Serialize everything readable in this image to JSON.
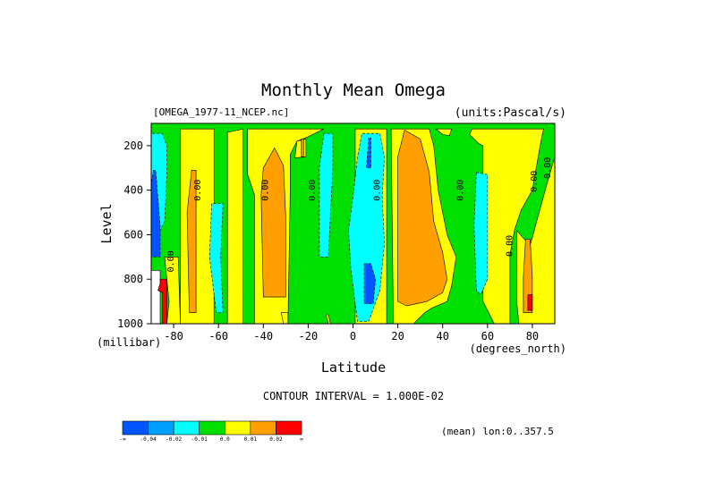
{
  "chart_data": {
    "type": "heatmap",
    "title": "Monthly Mean Omega",
    "dataset_label": "[OMEGA_1977-11_NCEP.nc]",
    "units_label": "(units:Pascal/s)",
    "xlabel": "Latitude",
    "x_units": "(degrees_north)",
    "ylabel": "Level",
    "y_units": "(millibar)",
    "xlim": [
      -90,
      90
    ],
    "ylim": [
      1000,
      100
    ],
    "x_ticks": [
      -80,
      -60,
      -40,
      -20,
      0,
      20,
      40,
      60,
      80
    ],
    "y_ticks": [
      200,
      400,
      600,
      800,
      1000
    ],
    "contour_interval_text": "CONTOUR INTERVAL = 1.000E-02",
    "subset_text": "(mean) lon:0..357.5",
    "contour_labels": [
      {
        "text": "0.00",
        "lat": -80,
        "level": 720
      },
      {
        "text": "0.00",
        "lat": -68,
        "level": 400
      },
      {
        "text": "0.00",
        "lat": -38,
        "level": 400
      },
      {
        "text": "0.00",
        "lat": -17,
        "level": 400
      },
      {
        "text": "0.00",
        "lat": 12,
        "level": 400
      },
      {
        "text": "0.00",
        "lat": 49,
        "level": 400
      },
      {
        "text": "0.00",
        "lat": 71,
        "level": 650
      },
      {
        "text": "0.00",
        "lat": 82,
        "level": 360
      },
      {
        "text": "0.00",
        "lat": 88,
        "level": 300
      }
    ],
    "colorbar": {
      "colors": [
        "#0055ff",
        "#00a0ff",
        "#00ffff",
        "#00e000",
        "#ffff00",
        "#ffa000",
        "#ff0000"
      ],
      "labels": [
        "-∞",
        "-0.04",
        "-0.02",
        "-0.01",
        "0.0",
        "0.01",
        "0.02",
        "∞"
      ]
    },
    "fields": {
      "background_color": "#00e000",
      "regions": [
        {
          "color": "#ffff00",
          "pts": [
            [
              -77,
              125
            ],
            [
              -77,
              1000
            ],
            [
              -62,
              1000
            ],
            [
              -62,
              125
            ]
          ]
        },
        {
          "color": "#ffff00",
          "pts": [
            [
              -56,
              140
            ],
            [
              -56,
              1000
            ],
            [
              -49,
              1000
            ],
            [
              -49,
              125
            ]
          ]
        },
        {
          "color": "#ffff00",
          "pts": [
            [
              -47,
              125
            ],
            [
              -47,
              330
            ],
            [
              -44,
              420
            ],
            [
              -44,
              1000
            ],
            [
              -29,
              1000
            ],
            [
              -28,
              420
            ],
            [
              -28,
              240
            ],
            [
              -25,
              180
            ],
            [
              -20,
              160
            ],
            [
              -17,
              145
            ],
            [
              -13,
              125
            ]
          ]
        },
        {
          "color": "#ffff00",
          "pts": [
            [
              -26,
              255
            ],
            [
              -25,
              180
            ],
            [
              -21,
              170
            ],
            [
              -21,
              250
            ]
          ]
        },
        {
          "color": "#ffff00",
          "pts": [
            [
              1,
              125
            ],
            [
              1,
              1000
            ],
            [
              15,
              1000
            ],
            [
              15,
              125
            ]
          ]
        },
        {
          "color": "#ffff00",
          "pts": [
            [
              17,
              125
            ],
            [
              18,
              1000
            ],
            [
              27,
              1000
            ],
            [
              32,
              950
            ],
            [
              35,
              930
            ],
            [
              42,
              900
            ],
            [
              44,
              830
            ],
            [
              46,
              700
            ],
            [
              42,
              600
            ],
            [
              38,
              400
            ],
            [
              36,
              200
            ],
            [
              34,
              125
            ]
          ]
        },
        {
          "color": "#ffff00",
          "pts": [
            [
              37,
              125
            ],
            [
              40,
              150
            ],
            [
              43,
              155
            ],
            [
              44,
              125
            ]
          ]
        },
        {
          "color": "#ffff00",
          "pts": [
            [
              53,
              125
            ],
            [
              52,
              150
            ],
            [
              56,
              190
            ],
            [
              58,
              200
            ],
            [
              58,
              900
            ],
            [
              63,
              1000
            ],
            [
              70,
              1000
            ],
            [
              70,
              690
            ],
            [
              72,
              580
            ],
            [
              75,
              490
            ],
            [
              80,
              400
            ],
            [
              84,
              170
            ],
            [
              85,
              125
            ]
          ]
        },
        {
          "color": "#ffff00",
          "pts": [
            [
              73,
              580
            ],
            [
              73,
              900
            ],
            [
              74,
              1000
            ],
            [
              90,
              1000
            ],
            [
              90,
              250
            ],
            [
              86,
              390
            ],
            [
              83,
              500
            ],
            [
              79,
              650
            ]
          ]
        },
        {
          "color": "#ffff00",
          "pts": [
            [
              -84,
              700
            ],
            [
              -82,
              900
            ],
            [
              -83,
              1000
            ],
            [
              -77,
              1000
            ],
            [
              -78,
              700
            ]
          ]
        },
        {
          "color": "#ffff00",
          "pts": [
            [
              -32,
              950
            ],
            [
              -31,
              1000
            ],
            [
              -29,
              1000
            ],
            [
              -29,
              950
            ]
          ]
        },
        {
          "color": "#ffff00",
          "pts": [
            [
              -12,
              960
            ],
            [
              -11,
              1000
            ],
            [
              -10,
              1000
            ],
            [
              -11,
              960
            ]
          ]
        },
        {
          "color": "#ffa000",
          "pts": [
            [
              -72,
              310
            ],
            [
              -74,
              500
            ],
            [
              -73,
              950
            ],
            [
              -70,
              950
            ],
            [
              -70,
              310
            ]
          ]
        },
        {
          "color": "#ffa000",
          "pts": [
            [
              -35,
              210
            ],
            [
              -40,
              300
            ],
            [
              -41,
              420
            ],
            [
              -40,
              880
            ],
            [
              -30,
              880
            ],
            [
              -30,
              520
            ],
            [
              -31,
              290
            ]
          ]
        },
        {
          "color": "#ffa000",
          "pts": [
            [
              -23,
              170
            ],
            [
              -23,
              250
            ],
            [
              -22,
              250
            ],
            [
              -22,
              170
            ]
          ]
        },
        {
          "color": "#ffa000",
          "pts": [
            [
              23,
              130
            ],
            [
              20,
              250
            ],
            [
              20,
              900
            ],
            [
              24,
              920
            ],
            [
              33,
              900
            ],
            [
              40,
              860
            ],
            [
              42,
              800
            ],
            [
              40,
              680
            ],
            [
              36,
              540
            ],
            [
              34,
              320
            ],
            [
              30,
              170
            ]
          ]
        },
        {
          "color": "#ffa000",
          "pts": [
            [
              77,
              620
            ],
            [
              76,
              790
            ],
            [
              76,
              950
            ],
            [
              80,
              950
            ],
            [
              80,
              790
            ],
            [
              79,
              620
            ]
          ]
        },
        {
          "color": "#00ffff",
          "pts": [
            [
              -90,
              145
            ],
            [
              -90,
              600
            ],
            [
              -88,
              620
            ],
            [
              -84,
              540
            ],
            [
              -83,
              330
            ],
            [
              -83,
              200
            ],
            [
              -85,
              145
            ]
          ]
        },
        {
          "color": "#00ffff",
          "pts": [
            [
              -63,
              460
            ],
            [
              -64,
              700
            ],
            [
              -61,
              950
            ],
            [
              -58,
              950
            ],
            [
              -59,
              700
            ],
            [
              -58,
              460
            ]
          ]
        },
        {
          "color": "#00ffff",
          "pts": [
            [
              -13,
              145
            ],
            [
              -15,
              300
            ],
            [
              -15,
              700
            ],
            [
              -11,
              700
            ],
            [
              -9,
              300
            ],
            [
              -9,
              145
            ]
          ]
        },
        {
          "color": "#00ffff",
          "pts": [
            [
              -2,
              580
            ],
            [
              -1,
              750
            ],
            [
              2,
              990
            ],
            [
              7,
              990
            ],
            [
              12,
              850
            ],
            [
              14,
              640
            ],
            [
              13,
              430
            ],
            [
              14,
              250
            ],
            [
              12,
              145
            ],
            [
              4,
              145
            ],
            [
              2,
              250
            ],
            [
              0,
              430
            ]
          ]
        },
        {
          "color": "#00ffff",
          "pts": [
            [
              55,
              320
            ],
            [
              54,
              560
            ],
            [
              55,
              850
            ],
            [
              57,
              870
            ],
            [
              60,
              800
            ],
            [
              60,
              330
            ]
          ]
        },
        {
          "color": "#0055ff",
          "pts": [
            [
              -89,
              310
            ],
            [
              -90,
              370
            ],
            [
              -90,
              700
            ],
            [
              -86,
              700
            ],
            [
              -86,
              560
            ],
            [
              -88,
              310
            ]
          ]
        },
        {
          "color": "#0055ff",
          "pts": [
            [
              7,
              165
            ],
            [
              6,
              300
            ],
            [
              8,
              300
            ],
            [
              8,
              165
            ]
          ]
        },
        {
          "color": "#0055ff",
          "pts": [
            [
              5,
              730
            ],
            [
              5,
              910
            ],
            [
              9,
              910
            ],
            [
              10,
              800
            ],
            [
              8,
              730
            ]
          ]
        },
        {
          "color": "#ffffff",
          "pts": [
            [
              -90,
              760
            ],
            [
              -90,
              1000
            ],
            [
              -86,
              1000
            ],
            [
              -86,
              760
            ]
          ]
        },
        {
          "color": "#ff0000",
          "pts": [
            [
              -86,
              800
            ],
            [
              -86,
              820
            ],
            [
              -87,
              850
            ],
            [
              -85,
              860
            ],
            [
              -85,
              1000
            ],
            [
              -83,
              1000
            ],
            [
              -83,
              800
            ]
          ]
        },
        {
          "color": "#ff0000",
          "pts": [
            [
              78,
              870
            ],
            [
              78,
              940
            ],
            [
              80,
              940
            ],
            [
              80,
              870
            ]
          ]
        }
      ]
    }
  }
}
